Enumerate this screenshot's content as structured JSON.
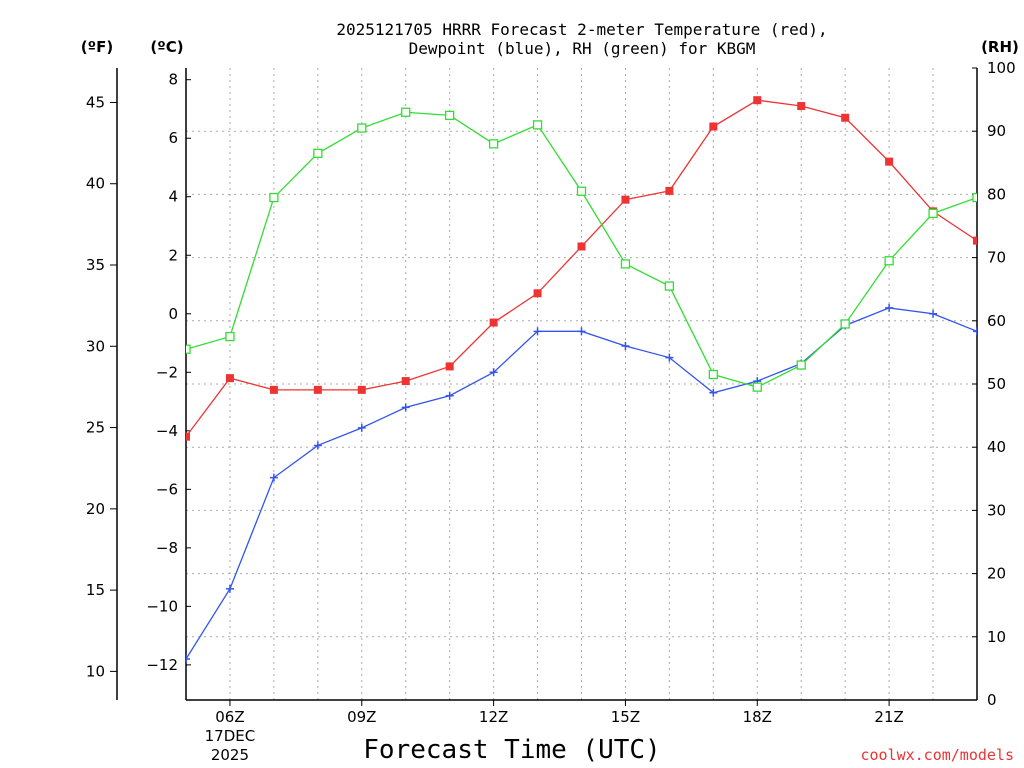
{
  "chart_data": {
    "type": "line",
    "title": [
      "2025121705 HRRR Forecast 2-meter Temperature (red),",
      "Dewpoint (blue), RH (green) for KBGM"
    ],
    "xlabel": "Forecast Time (UTC)",
    "credit": "coolwx.com/models",
    "units": {
      "fahrenheit": "(ºF)",
      "celsius": "(ºC)",
      "rh": "(RH)"
    },
    "x_hours": [
      5,
      6,
      7,
      8,
      9,
      10,
      11,
      12,
      13,
      14,
      15,
      16,
      17,
      18,
      19,
      20,
      21,
      22,
      23
    ],
    "xlim": [
      5,
      23
    ],
    "x_ticks": [
      {
        "hour": 6,
        "label": "06Z",
        "date": [
          "17DEC",
          "2025"
        ]
      },
      {
        "hour": 9,
        "label": "09Z"
      },
      {
        "hour": 12,
        "label": "12Z"
      },
      {
        "hour": 15,
        "label": "15Z"
      },
      {
        "hour": 18,
        "label": "18Z"
      },
      {
        "hour": 21,
        "label": "21Z"
      }
    ],
    "celsius_axis": {
      "min": -13.2,
      "max": 8.4,
      "ticks": [
        -12,
        -10,
        -8,
        -6,
        -4,
        -2,
        0,
        2,
        4,
        6,
        8
      ]
    },
    "fahrenheit_ticks": [
      10,
      15,
      20,
      25,
      30,
      35,
      40,
      45
    ],
    "rh_axis": {
      "min": 0,
      "max": 100,
      "ticks": [
        0,
        10,
        20,
        30,
        40,
        50,
        60,
        70,
        80,
        90,
        100
      ]
    },
    "series": [
      {
        "name": "Temperature",
        "units": "C",
        "axis": "celsius",
        "color": "#ee3333",
        "marker": "filled-square",
        "values": [
          -4.2,
          -2.2,
          -2.6,
          -2.6,
          -2.6,
          -2.3,
          -1.8,
          -0.3,
          0.7,
          2.3,
          3.9,
          4.2,
          6.4,
          7.3,
          7.1,
          6.7,
          5.2,
          3.5,
          2.5
        ]
      },
      {
        "name": "Dewpoint",
        "units": "C",
        "axis": "celsius",
        "color": "#3355ee",
        "marker": "plus",
        "values": [
          -11.8,
          -9.4,
          -5.6,
          -4.5,
          -3.9,
          -3.2,
          -2.8,
          -2.0,
          -0.6,
          -0.6,
          -1.1,
          -1.5,
          -2.7,
          -2.3,
          -1.7,
          -0.4,
          0.2,
          0.0,
          -0.6
        ]
      },
      {
        "name": "RH",
        "units": "%",
        "axis": "rh",
        "color": "#33dd33",
        "marker": "open-square",
        "values": [
          55.5,
          57.5,
          79.5,
          86.5,
          90.5,
          93.0,
          92.5,
          88.0,
          91.0,
          80.5,
          69.0,
          65.5,
          51.5,
          49.5,
          53.0,
          59.5,
          69.5,
          77.0,
          79.5
        ]
      }
    ]
  }
}
